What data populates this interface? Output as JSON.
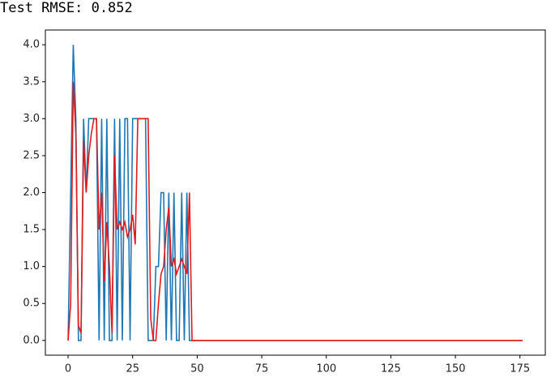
{
  "console": {
    "text": "Test RMSE: 0.852"
  },
  "chart_data": {
    "type": "line",
    "x": [
      0,
      1,
      2,
      3,
      4,
      5,
      6,
      7,
      8,
      9,
      10,
      11,
      12,
      13,
      14,
      15,
      16,
      17,
      18,
      19,
      20,
      21,
      22,
      23,
      24,
      25,
      26,
      27,
      28,
      29,
      30,
      31,
      32,
      33,
      34,
      35,
      36,
      37,
      38,
      39,
      40,
      41,
      42,
      43,
      44,
      45,
      46,
      47,
      48,
      176
    ],
    "series": [
      {
        "color": "#1f77b4",
        "values": [
          0,
          2,
          4,
          3,
          0,
          0,
          3,
          2,
          3,
          3,
          3,
          3,
          0,
          3,
          0,
          3,
          0,
          0,
          3,
          0,
          3,
          0,
          3,
          3,
          0,
          3,
          3,
          3,
          3,
          3,
          3,
          0,
          0,
          0,
          1,
          1,
          2,
          2,
          0,
          2,
          0,
          2,
          0,
          0,
          2,
          0,
          2,
          0,
          0,
          0
        ]
      },
      {
        "color": "#e31a1c",
        "values": [
          0,
          0.5,
          3.5,
          2.8,
          0.2,
          0.1,
          2.7,
          2.0,
          2.5,
          2.8,
          3.0,
          3.0,
          1.5,
          2.0,
          0.8,
          1.6,
          1.0,
          0.1,
          2.5,
          1.5,
          1.6,
          1.5,
          1.6,
          1.4,
          1.5,
          1.7,
          1.3,
          3.0,
          3.0,
          3.0,
          3.0,
          3.0,
          0.3,
          0,
          0,
          0.5,
          0.9,
          1.0,
          1.5,
          1.8,
          1.0,
          1.1,
          0.9,
          1.0,
          1.1,
          1.0,
          0.9,
          2.0,
          0,
          0
        ]
      }
    ],
    "xlim": [
      -8.8,
      184.8
    ],
    "ylim": [
      -0.2,
      4.2
    ],
    "xticks": [
      0,
      25,
      50,
      75,
      100,
      125,
      150,
      175
    ],
    "yticks": [
      {
        "value": 0,
        "label": "0.0"
      },
      0.5,
      {
        "value": 1,
        "label": "1.0"
      },
      1.5,
      {
        "value": 2,
        "label": "2.0"
      },
      2.5,
      {
        "value": 3,
        "label": "3.0"
      },
      3.5,
      {
        "value": 4,
        "label": "4.0"
      }
    ],
    "grid": false
  }
}
